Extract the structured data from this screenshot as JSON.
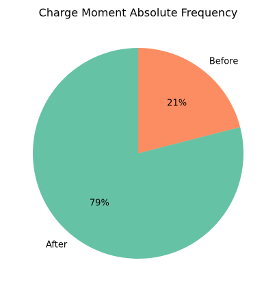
{
  "chart_data": {
    "type": "pie",
    "title": "Charge Moment Absolute Frequency",
    "slices": [
      {
        "label": "Before",
        "value": 21,
        "pct_label": "21%",
        "color": "#fc8d62"
      },
      {
        "label": "After",
        "value": 79,
        "pct_label": "79%",
        "color": "#66c2a5"
      }
    ],
    "start_angle": "12 o'clock",
    "direction": "clockwise",
    "legend": false
  }
}
